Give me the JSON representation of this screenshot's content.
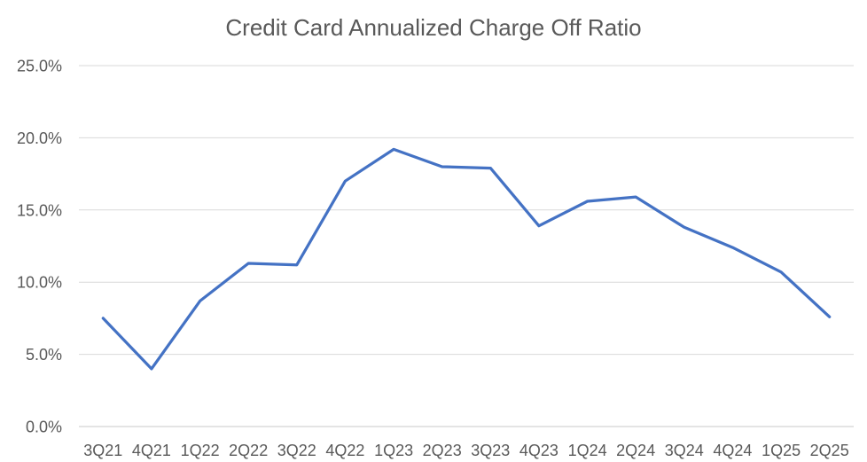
{
  "chart_data": {
    "type": "line",
    "title": "Credit Card Annualized Charge Off Ratio",
    "categories": [
      "3Q21",
      "4Q21",
      "1Q22",
      "2Q22",
      "3Q22",
      "4Q22",
      "1Q23",
      "2Q23",
      "3Q23",
      "4Q23",
      "1Q24",
      "2Q24",
      "3Q24",
      "4Q24",
      "1Q25",
      "2Q25"
    ],
    "values": [
      7.5,
      4.0,
      8.7,
      11.3,
      11.2,
      17.0,
      19.2,
      18.0,
      17.9,
      13.9,
      15.6,
      15.9,
      13.8,
      12.4,
      10.7,
      7.6
    ],
    "unit": "%",
    "xlabel": "",
    "ylabel": "",
    "ylim": [
      0,
      25
    ],
    "ytick_step": 5,
    "ytick_labels": [
      "0.0%",
      "5.0%",
      "10.0%",
      "15.0%",
      "20.0%",
      "25.0%"
    ],
    "grid": true,
    "legend": "none",
    "colors": {
      "line": "#4472C4",
      "title": "#595959",
      "axis_labels": "#595959",
      "gridlines": "#D9D9D9",
      "axis_line": "#C9C9C9",
      "background": "#FFFFFF"
    }
  }
}
